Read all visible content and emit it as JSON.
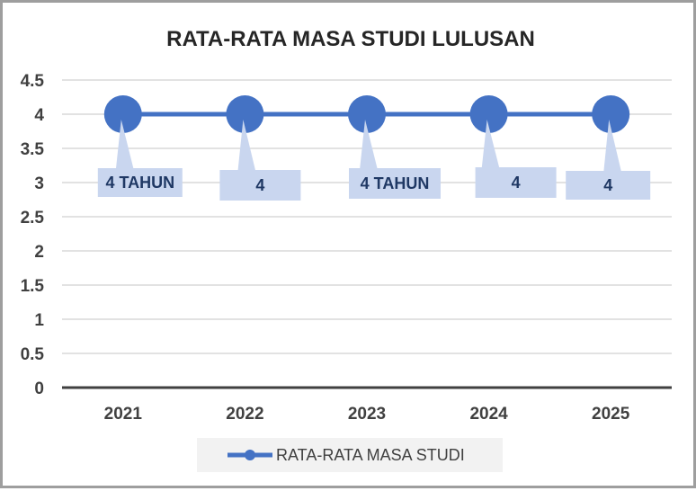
{
  "chart_data": {
    "type": "line",
    "title": "RATA-RATA MASA STUDI LULUSAN",
    "categories": [
      "2021",
      "2022",
      "2023",
      "2024",
      "2025"
    ],
    "series": [
      {
        "name": "RATA-RATA MASA STUDI",
        "values": [
          4,
          4,
          4,
          4,
          4
        ],
        "data_labels": [
          "4 TAHUN",
          "4",
          "4 TAHUN",
          "4",
          "4"
        ],
        "color": "#4472c4"
      }
    ],
    "ylim": [
      0,
      4.5
    ],
    "yticks": [
      "0",
      "0.5",
      "1",
      "1.5",
      "2",
      "2.5",
      "3",
      "3.5",
      "4",
      "4.5"
    ],
    "grid": true,
    "legend_position": "bottom",
    "callout_color": "#c9d6ef"
  }
}
